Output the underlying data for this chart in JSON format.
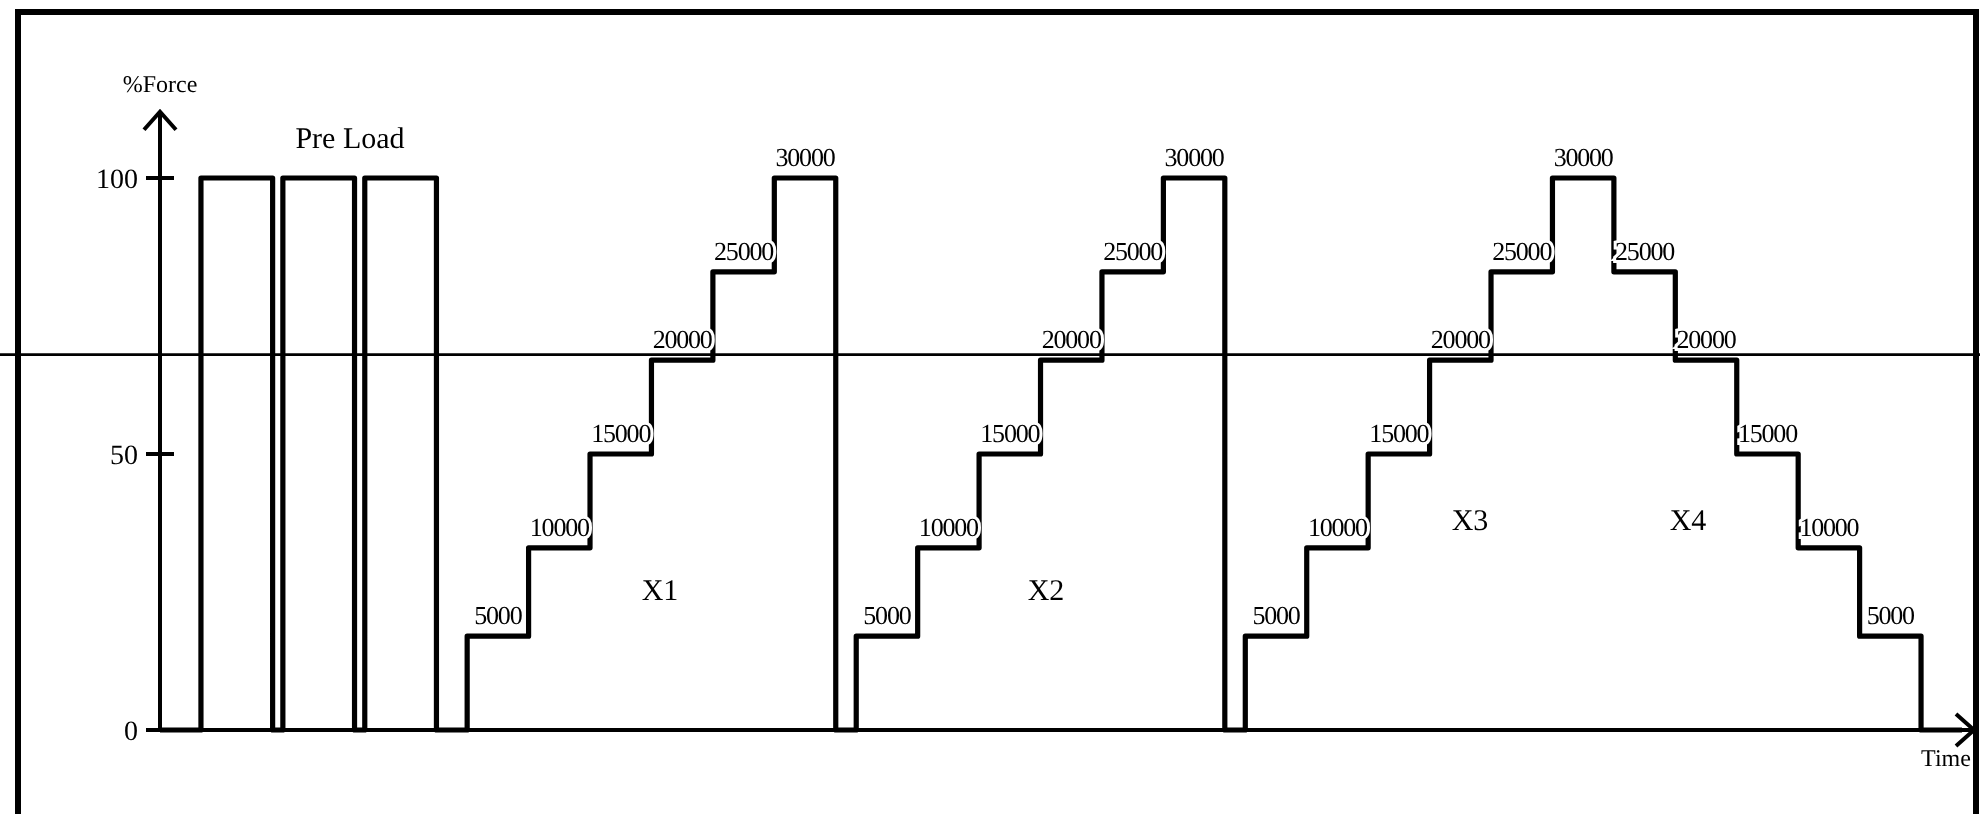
{
  "chart_data": {
    "type": "step",
    "ylabel": "%Force",
    "xlabel": "Time",
    "ylim": [
      0,
      112
    ],
    "yticks": [
      0,
      50,
      100
    ],
    "tick_labels": "y",
    "categories": [
      null,
      null,
      null,
      null,
      null,
      null,
      null,
      null,
      null,
      null,
      null,
      null,
      null,
      null,
      null,
      null,
      null,
      null,
      null,
      null,
      null,
      null,
      null,
      null,
      null,
      null,
      null,
      null,
      null,
      null,
      null,
      null,
      null,
      null,
      null,
      null,
      null,
      null,
      null,
      null,
      null,
      null,
      null,
      null,
      null,
      null,
      null,
      null,
      null,
      null,
      null,
      null,
      null,
      null,
      null,
      null,
      null,
      null,
      null,
      null,
      null,
      null,
      null,
      null,
      null,
      null,
      null,
      null,
      null,
      null,
      null,
      null,
      null,
      null,
      null,
      null,
      null,
      null,
      null,
      null,
      null,
      null,
      null,
      null,
      null,
      null,
      null,
      null,
      null,
      null,
      null,
      null,
      null,
      null,
      null,
      null,
      null,
      null,
      null,
      null,
      null,
      null,
      null,
      null,
      null,
      null,
      null,
      null,
      null,
      null,
      null,
      null,
      null,
      null,
      null,
      null,
      null,
      null,
      null,
      null,
      null,
      null,
      null,
      null,
      null,
      null,
      null,
      null,
      null,
      null,
      null,
      null,
      null,
      null,
      null,
      null,
      null,
      null,
      null,
      null,
      null,
      null,
      null,
      null,
      null,
      null,
      null,
      null,
      null,
      null,
      null,
      null,
      null,
      null,
      null,
      null,
      null,
      null,
      null,
      null,
      null,
      null,
      null,
      null,
      null,
      null,
      null,
      null,
      null,
      null,
      null,
      null,
      null,
      null,
      null,
      null,
      null
    ],
    "series": [
      {
        "color": "#000000",
        "values": [
          0,
          0,
          0,
          0,
          100,
          100,
          100,
          100,
          100,
          100,
          100,
          0,
          100,
          100,
          100,
          100,
          100,
          100,
          100,
          0,
          100,
          100,
          100,
          100,
          100,
          100,
          100,
          0,
          0,
          0,
          17,
          17,
          17,
          17,
          17,
          17,
          33,
          33,
          33,
          33,
          33,
          33,
          50,
          50,
          50,
          50,
          50,
          50,
          67,
          67,
          67,
          67,
          67,
          67,
          83,
          83,
          83,
          83,
          83,
          83,
          100,
          100,
          100,
          100,
          100,
          100,
          0,
          0,
          17,
          17,
          17,
          17,
          17,
          17,
          33,
          33,
          33,
          33,
          33,
          33,
          50,
          50,
          50,
          50,
          50,
          50,
          67,
          67,
          67,
          67,
          67,
          67,
          83,
          83,
          83,
          83,
          83,
          83,
          100,
          100,
          100,
          100,
          100,
          100,
          0,
          0,
          17,
          17,
          17,
          17,
          17,
          17,
          33,
          33,
          33,
          33,
          33,
          33,
          50,
          50,
          50,
          50,
          50,
          50,
          67,
          67,
          67,
          67,
          67,
          67,
          83,
          83,
          83,
          83,
          83,
          83,
          100,
          100,
          100,
          100,
          100,
          100,
          83,
          83,
          83,
          83,
          83,
          83,
          67,
          67,
          67,
          67,
          67,
          67,
          50,
          50,
          50,
          50,
          50,
          50,
          33,
          33,
          33,
          33,
          33,
          33,
          17,
          17,
          17,
          17,
          17,
          17,
          0,
          0,
          0,
          0,
          0
        ]
      }
    ],
    "ref_lines": [
      {
        "axis": "y",
        "value": 68
      }
    ],
    "annotations": [
      "Pre Load",
      "X1",
      "X2",
      "X3",
      "X4",
      {
        "text": "5000",
        "y": 17
      },
      {
        "text": "10000",
        "y": 33
      },
      {
        "text": "15000",
        "y": 50
      },
      {
        "text": "20000",
        "y": 67
      },
      {
        "text": "25000",
        "y": 83
      },
      {
        "text": "30000",
        "y": 100
      },
      {
        "text": "5000",
        "y": 17
      },
      {
        "text": "10000",
        "y": 33
      },
      {
        "text": "15000",
        "y": 50
      },
      {
        "text": "20000",
        "y": 67
      },
      {
        "text": "25000",
        "y": 83
      },
      {
        "text": "30000",
        "y": 100
      },
      {
        "text": "5000",
        "y": 17
      },
      {
        "text": "10000",
        "y": 33
      },
      {
        "text": "15000",
        "y": 50
      },
      {
        "text": "20000",
        "y": 67
      },
      {
        "text": "25000",
        "y": 83
      },
      {
        "text": "30000",
        "y": 100
      },
      {
        "text": "25000",
        "y": 83
      },
      {
        "text": "20000",
        "y": 67
      },
      {
        "text": "15000",
        "y": 50
      },
      {
        "text": "10000",
        "y": 33
      },
      {
        "text": "5000",
        "y": 17
      }
    ]
  }
}
